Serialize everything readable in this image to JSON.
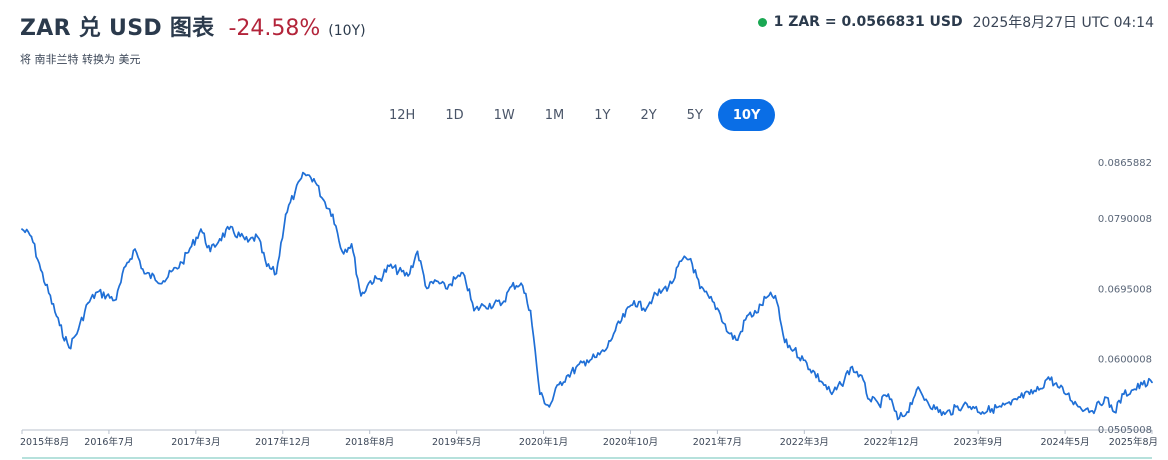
{
  "header": {
    "title": "ZAR 兑 USD 图表",
    "change": "-24.58%",
    "period": "(10Y)",
    "subnote": "将 南非兰特 转换为 美元"
  },
  "rate": {
    "text": "1 ZAR = 0.0566831 USD",
    "timestamp": "2025年8月27日 UTC 04:14",
    "live_color": "#1aa853"
  },
  "range_tabs": [
    {
      "label": "12H",
      "active": false
    },
    {
      "label": "1D",
      "active": false
    },
    {
      "label": "1W",
      "active": false
    },
    {
      "label": "1M",
      "active": false
    },
    {
      "label": "1Y",
      "active": false
    },
    {
      "label": "2Y",
      "active": false
    },
    {
      "label": "5Y",
      "active": false
    },
    {
      "label": "10Y",
      "active": true
    }
  ],
  "colors": {
    "accent": "#0a6ee6",
    "line": "#1f6fd6",
    "negative": "#b3243a"
  },
  "chart_data": {
    "type": "line",
    "title": "",
    "xlabel": "",
    "ylabel": "",
    "ylim": [
      0.0505008,
      0.0865882
    ],
    "yticks": [
      "0.0865882",
      "0.0790008",
      "0.0695008",
      "0.0600008",
      "0.0505008"
    ],
    "xticks": [
      "2015年8月",
      "2016年7月",
      "2017年3月",
      "2017年12月",
      "2018年8月",
      "2019年5月",
      "2020年1月",
      "2020年10月",
      "2021年7月",
      "2022年3月",
      "2022年12月",
      "2023年9月",
      "2024年5月",
      "2025年8月"
    ],
    "grid": false,
    "series": [
      {
        "name": "",
        "x": [
          "2015-08",
          "2015-09",
          "2015-10",
          "2015-12",
          "2016-01",
          "2016-02",
          "2016-03",
          "2016-04",
          "2016-06",
          "2016-07",
          "2016-08",
          "2016-09",
          "2016-11",
          "2017-01",
          "2017-02",
          "2017-03",
          "2017-04",
          "2017-05",
          "2017-06",
          "2017-08",
          "2017-09",
          "2017-10",
          "2017-11",
          "2017-12",
          "2018-01",
          "2018-02",
          "2018-03",
          "2018-04",
          "2018-05",
          "2018-06",
          "2018-07",
          "2018-08",
          "2018-09",
          "2018-10",
          "2018-11",
          "2019-01",
          "2019-02",
          "2019-03",
          "2019-04",
          "2019-05",
          "2019-06",
          "2019-07",
          "2019-08",
          "2019-09",
          "2019-11",
          "2019-12",
          "2020-01",
          "2020-02",
          "2020-03",
          "2020-04",
          "2020-05",
          "2020-06",
          "2020-08",
          "2020-09",
          "2020-10",
          "2020-11",
          "2021-01",
          "2021-02",
          "2021-03",
          "2021-04",
          "2021-05",
          "2021-06",
          "2021-07",
          "2021-08",
          "2021-09",
          "2021-10",
          "2021-11",
          "2021-12",
          "2022-01",
          "2022-02",
          "2022-03",
          "2022-04",
          "2022-05",
          "2022-06",
          "2022-07",
          "2022-09",
          "2022-10",
          "2022-11",
          "2022-12",
          "2023-01",
          "2023-02",
          "2023-03",
          "2023-04",
          "2023-05",
          "2023-06",
          "2023-07",
          "2023-08",
          "2023-09",
          "2023-10",
          "2023-12",
          "2024-01",
          "2024-02",
          "2024-03",
          "2024-04",
          "2024-05",
          "2024-06",
          "2024-07",
          "2024-08",
          "2024-09",
          "2024-10",
          "2024-11",
          "2024-12",
          "2025-01",
          "2025-02",
          "2025-03",
          "2025-04",
          "2025-05",
          "2025-06",
          "2025-07",
          "2025-08"
        ],
        "values": [
          0.0775,
          0.0765,
          0.072,
          0.0645,
          0.0615,
          0.064,
          0.0675,
          0.069,
          0.068,
          0.0725,
          0.0748,
          0.0715,
          0.0705,
          0.073,
          0.0752,
          0.0775,
          0.0745,
          0.0762,
          0.0775,
          0.0758,
          0.0765,
          0.0725,
          0.0715,
          0.0795,
          0.0825,
          0.085,
          0.0843,
          0.0815,
          0.0795,
          0.0745,
          0.0755,
          0.0685,
          0.0705,
          0.0708,
          0.0725,
          0.0712,
          0.0745,
          0.0695,
          0.0705,
          0.0695,
          0.0708,
          0.0712,
          0.0665,
          0.0672,
          0.0675,
          0.0698,
          0.0702,
          0.0665,
          0.0552,
          0.0535,
          0.0565,
          0.0578,
          0.0598,
          0.0602,
          0.0612,
          0.0638,
          0.0678,
          0.0668,
          0.0682,
          0.0692,
          0.0702,
          0.0732,
          0.0735,
          0.0695,
          0.0682,
          0.0665,
          0.0635,
          0.0625,
          0.0658,
          0.0662,
          0.0682,
          0.0685,
          0.0622,
          0.0612,
          0.0598,
          0.0568,
          0.0552,
          0.0565,
          0.0588,
          0.0578,
          0.0545,
          0.0538,
          0.0552,
          0.0518,
          0.0528,
          0.0558,
          0.0545,
          0.0532,
          0.0525,
          0.0538,
          0.0535,
          0.0528,
          0.0532,
          0.0535,
          0.0538,
          0.0548,
          0.0552,
          0.0558,
          0.0575,
          0.0562,
          0.0552,
          0.0538,
          0.0532,
          0.0532,
          0.0548,
          0.0528,
          0.0552,
          0.0558,
          0.0565,
          0.0568
        ]
      }
    ]
  }
}
